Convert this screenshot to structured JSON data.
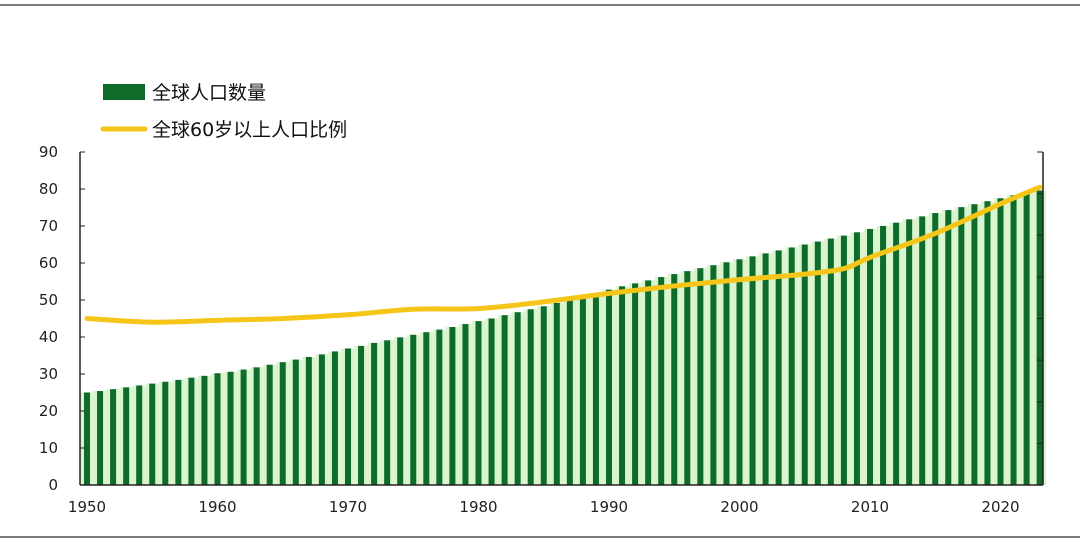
{
  "chart_data": {
    "type": "bar+line",
    "legend": [
      "全球人口数量",
      "全球60岁以上人口比例"
    ],
    "legend_placement": "top-left",
    "ylim": [
      0,
      90
    ],
    "yticks": [
      "0",
      "10",
      "20",
      "30",
      "40",
      "50",
      "60",
      "70",
      "80",
      "90"
    ],
    "xticks": [
      "1950",
      "1960",
      "1970",
      "1980",
      "1990",
      "2000",
      "2010",
      "2020"
    ],
    "right_axis_labels": "none",
    "grid": false,
    "colors": {
      "bar": "#0f6b2a",
      "bar_gap": "#d8f5d0",
      "line": "#f5c518"
    },
    "bars": {
      "name": "全球人口数量",
      "start_year": 1950,
      "values": [
        25.0,
        25.4,
        25.9,
        26.4,
        26.9,
        27.4,
        27.9,
        28.4,
        29.0,
        29.5,
        30.2,
        30.6,
        31.2,
        31.8,
        32.5,
        33.2,
        33.9,
        34.6,
        35.3,
        36.1,
        36.9,
        37.6,
        38.4,
        39.1,
        39.9,
        40.6,
        41.3,
        42.0,
        42.7,
        43.5,
        44.3,
        45.0,
        45.9,
        46.7,
        47.5,
        48.3,
        49.2,
        50.1,
        51.0,
        51.9,
        52.8,
        53.7,
        54.5,
        55.3,
        56.2,
        57.0,
        57.8,
        58.6,
        59.4,
        60.2,
        61.0,
        61.8,
        62.6,
        63.4,
        64.2,
        65.0,
        65.8,
        66.6,
        67.4,
        68.3,
        69.2,
        70.0,
        70.9,
        71.8,
        72.6,
        73.5,
        74.3,
        75.1,
        75.9,
        76.7,
        77.5,
        78.3,
        79.0,
        79.6
      ]
    },
    "line": {
      "name": "全球60岁以上人口比例",
      "x": [
        1950,
        1955,
        1960,
        1965,
        1970,
        1975,
        1980,
        1985,
        1990,
        1995,
        2000,
        2005,
        2008,
        2010,
        2015,
        2020,
        2023
      ],
      "y": [
        45,
        44,
        44.5,
        45,
        46,
        47.5,
        47.7,
        49.5,
        51.8,
        53.8,
        55.5,
        57,
        58.5,
        61.5,
        68,
        76,
        80.5
      ]
    }
  }
}
